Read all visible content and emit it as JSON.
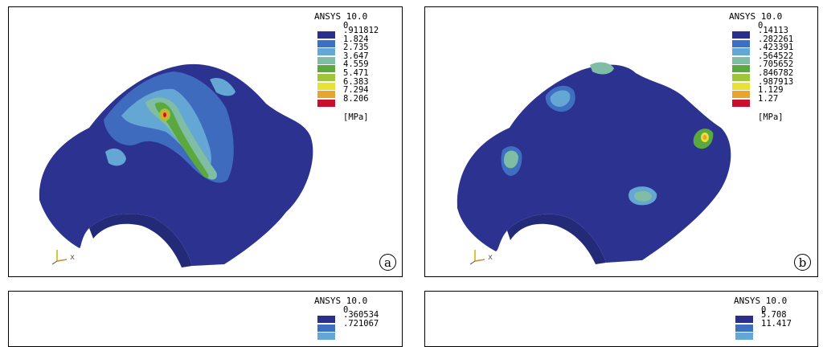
{
  "colors": {
    "legend": [
      "#2a2f8e",
      "#3f6fc0",
      "#64a6d4",
      "#7fbea4",
      "#5aa83f",
      "#9ec63a",
      "#e8e235",
      "#e8a52e",
      "#e05a24",
      "#c8102e"
    ],
    "mesh": "#2b3290"
  },
  "panels": [
    {
      "title": "ANSYS 10.0",
      "first": "0",
      "values": [
        ".911812",
        "1.824",
        "2.735",
        "3.647",
        "4.559",
        "5.471",
        "6.383",
        "7.294",
        "8.206"
      ],
      "unit": "[MPa]",
      "label": "a",
      "axis": "x"
    },
    {
      "title": "ANSYS 10.0",
      "first": "0",
      "values": [
        ".14113",
        ".282261",
        ".423391",
        ".564522",
        ".705652",
        ".846782",
        ".987913",
        "1.129",
        "1.27"
      ],
      "unit": "[MPa]",
      "label": "b",
      "axis": "x"
    },
    {
      "title": "ANSYS 10.0",
      "first": "0",
      "values": [
        ".360534",
        ".721067"
      ],
      "unit": "",
      "label": "",
      "axis": ""
    },
    {
      "title": "ANSYS 10.0",
      "first": "0",
      "values": [
        "5.708",
        "11.417"
      ],
      "unit": "",
      "label": "",
      "axis": ""
    }
  ]
}
